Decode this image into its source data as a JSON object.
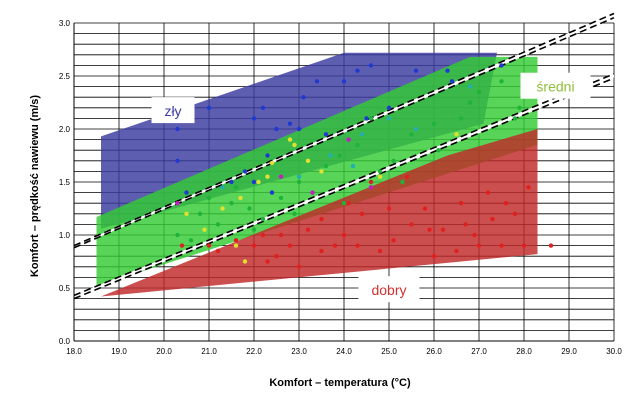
{
  "chart_data": {
    "type": "scatter",
    "title": "",
    "xlabel": "Komfort – temperatura (°C)",
    "ylabel": "Komfort – prędkość nawiewu (m/s)",
    "xlim": [
      18.0,
      30.0
    ],
    "ylim": [
      0.0,
      3.0
    ],
    "x_ticks": [
      "18.0",
      "19.0",
      "20.0",
      "21.0",
      "22.0",
      "23.0",
      "24.0",
      "25.0",
      "26.0",
      "27.0",
      "28.0",
      "29.0",
      "30.0"
    ],
    "y_ticks": [
      "0.0",
      "0.5",
      "1.0",
      "1.5",
      "2.0",
      "2.5",
      "3.0"
    ],
    "grid": true,
    "regions": [
      {
        "label": "zły",
        "color": "#3a3aa0",
        "label_color": "#3a3aa0",
        "label_pos": [
          20.2,
          2.15
        ],
        "polygon": [
          [
            18.6,
            1.06
          ],
          [
            27.1,
            2.05
          ],
          [
            27.4,
            2.72
          ],
          [
            24.0,
            2.72
          ],
          [
            18.6,
            1.93
          ]
        ]
      },
      {
        "label": "średni",
        "color": "#33cc33",
        "label_color": "#8fbf3a",
        "label_pos": [
          28.7,
          2.38
        ],
        "polygon": [
          [
            18.5,
            0.52
          ],
          [
            28.3,
            1.85
          ],
          [
            28.3,
            2.68
          ],
          [
            26.8,
            2.68
          ],
          [
            18.5,
            1.17
          ]
        ]
      },
      {
        "label": "dobry",
        "color": "#c02828",
        "label_color": "#d03030",
        "label_pos": [
          25.0,
          0.46
        ],
        "polygon": [
          [
            18.6,
            0.42
          ],
          [
            28.3,
            0.82
          ],
          [
            28.3,
            2.0
          ],
          [
            26.3,
            1.75
          ]
        ]
      }
    ],
    "boundary_lines": [
      {
        "style": "dashed",
        "color": "#000000",
        "points": [
          [
            18.0,
            0.88
          ],
          [
            30.0,
            3.05
          ]
        ]
      },
      {
        "style": "dashed",
        "color": "#000000",
        "points": [
          [
            18.0,
            0.9
          ],
          [
            30.0,
            3.09
          ]
        ]
      },
      {
        "style": "dashed",
        "color": "#000000",
        "points": [
          [
            18.0,
            0.4
          ],
          [
            30.0,
            2.48
          ]
        ]
      },
      {
        "style": "dashed",
        "color": "#000000",
        "points": [
          [
            18.0,
            0.43
          ],
          [
            30.0,
            2.52
          ]
        ]
      }
    ],
    "series": [
      {
        "color": "#1f3ad0",
        "points": [
          [
            20.3,
            2.0
          ],
          [
            20.3,
            1.7
          ],
          [
            20.5,
            1.4
          ],
          [
            21.5,
            1.5
          ],
          [
            21.8,
            1.6
          ],
          [
            22.0,
            2.1
          ],
          [
            22.2,
            2.2
          ],
          [
            22.3,
            1.75
          ],
          [
            22.5,
            2.0
          ],
          [
            22.8,
            2.05
          ],
          [
            22.0,
            1.5
          ],
          [
            23.1,
            2.3
          ],
          [
            23.4,
            2.45
          ],
          [
            24.3,
            2.55
          ],
          [
            24.6,
            2.6
          ],
          [
            25.6,
            2.55
          ],
          [
            26.3,
            2.55
          ],
          [
            21.0,
            2.2
          ],
          [
            23.0,
            2.0
          ],
          [
            24.0,
            2.45
          ],
          [
            27.5,
            2.6
          ],
          [
            26.4,
            2.45
          ],
          [
            22.4,
            1.4
          ],
          [
            24.5,
            2.1
          ],
          [
            25.0,
            2.2
          ],
          [
            23.6,
            1.95
          ]
        ]
      },
      {
        "color": "#1fb33a",
        "points": [
          [
            20.3,
            1.0
          ],
          [
            20.8,
            1.2
          ],
          [
            21.0,
            1.35
          ],
          [
            21.2,
            1.1
          ],
          [
            21.5,
            1.3
          ],
          [
            21.6,
            1.45
          ],
          [
            22.0,
            1.05
          ],
          [
            22.2,
            1.15
          ],
          [
            22.6,
            1.35
          ],
          [
            23.0,
            1.5
          ],
          [
            23.6,
            1.65
          ],
          [
            24.0,
            1.3
          ],
          [
            24.3,
            1.85
          ],
          [
            24.6,
            2.1
          ],
          [
            25.1,
            1.7
          ],
          [
            25.5,
            1.95
          ],
          [
            26.0,
            2.05
          ],
          [
            26.6,
            2.1
          ],
          [
            27.0,
            2.35
          ],
          [
            27.5,
            2.45
          ],
          [
            27.8,
            2.1
          ],
          [
            27.9,
            2.2
          ],
          [
            26.1,
            1.8
          ],
          [
            25.3,
            1.5
          ],
          [
            24.8,
            1.6
          ],
          [
            22.9,
            1.2
          ],
          [
            20.6,
            0.95
          ],
          [
            23.9,
            1.75
          ],
          [
            26.8,
            2.25
          ],
          [
            21.9,
            1.25
          ]
        ]
      },
      {
        "color": "#e0e030",
        "points": [
          [
            20.5,
            1.2
          ],
          [
            21.3,
            1.25
          ],
          [
            21.7,
            1.35
          ],
          [
            22.3,
            1.55
          ],
          [
            22.4,
            1.68
          ],
          [
            22.9,
            1.85
          ],
          [
            23.5,
            1.6
          ],
          [
            22.8,
            1.9
          ],
          [
            21.6,
            0.9
          ],
          [
            20.9,
            1.05
          ],
          [
            21.8,
            0.75
          ],
          [
            22.1,
            1.5
          ],
          [
            23.2,
            1.7
          ],
          [
            24.8,
            1.55
          ],
          [
            26.5,
            1.95
          ]
        ]
      },
      {
        "color": "#e02020",
        "points": [
          [
            20.4,
            0.9
          ],
          [
            21.0,
            0.9
          ],
          [
            21.6,
            0.95
          ],
          [
            22.0,
            0.9
          ],
          [
            22.2,
            1.0
          ],
          [
            22.5,
            0.8
          ],
          [
            22.8,
            0.9
          ],
          [
            23.2,
            1.05
          ],
          [
            23.5,
            0.85
          ],
          [
            23.8,
            0.9
          ],
          [
            24.0,
            1.0
          ],
          [
            24.3,
            0.9
          ],
          [
            24.8,
            0.85
          ],
          [
            25.1,
            0.95
          ],
          [
            25.5,
            1.1
          ],
          [
            25.8,
            1.25
          ],
          [
            26.0,
            0.8
          ],
          [
            26.2,
            1.05
          ],
          [
            26.5,
            0.85
          ],
          [
            26.6,
            1.3
          ],
          [
            26.9,
            1.0
          ],
          [
            27.0,
            0.9
          ],
          [
            27.3,
            1.15
          ],
          [
            27.5,
            0.9
          ],
          [
            27.8,
            1.2
          ],
          [
            28.0,
            0.9
          ],
          [
            28.1,
            1.45
          ],
          [
            28.6,
            0.9
          ],
          [
            24.1,
            1.3
          ],
          [
            24.6,
            1.5
          ],
          [
            25.4,
            1.55
          ],
          [
            22.3,
            0.75
          ],
          [
            23.0,
            0.7
          ],
          [
            21.2,
            0.85
          ],
          [
            26.7,
            1.1
          ],
          [
            27.2,
            1.4
          ],
          [
            27.6,
            1.3
          ],
          [
            24.4,
            1.2
          ],
          [
            25.0,
            1.25
          ],
          [
            25.9,
            1.05
          ],
          [
            23.5,
            1.15
          ],
          [
            22.6,
            1.0
          ]
        ]
      },
      {
        "color": "#20b0b0",
        "points": [
          [
            23.7,
            1.75
          ],
          [
            24.4,
            1.95
          ],
          [
            25.0,
            2.1
          ],
          [
            23.0,
            1.55
          ],
          [
            21.3,
            1.45
          ],
          [
            24.2,
            1.65
          ],
          [
            25.6,
            2.0
          ],
          [
            26.8,
            2.4
          ]
        ]
      },
      {
        "color": "#c020c0",
        "points": [
          [
            20.3,
            1.3
          ],
          [
            22.6,
            1.55
          ],
          [
            24.1,
            1.9
          ],
          [
            23.3,
            1.4
          ],
          [
            24.6,
            1.45
          ]
        ]
      }
    ]
  }
}
